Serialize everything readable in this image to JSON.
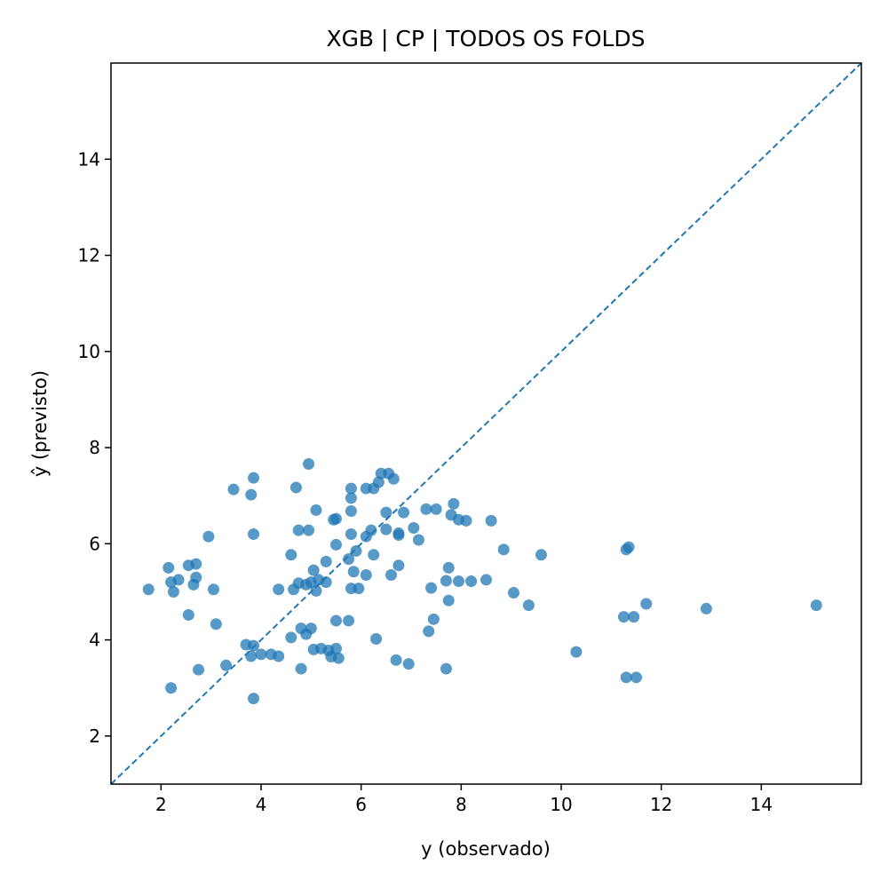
{
  "chart_data": {
    "type": "scatter",
    "title": "XGB | CP | TODOS OS FOLDS",
    "xlabel": "y (observado)",
    "ylabel": "ŷ (previsto)",
    "xlim": [
      1.0,
      16.0
    ],
    "ylim": [
      1.0,
      16.0
    ],
    "xticks": [
      2,
      4,
      6,
      8,
      10,
      12,
      14
    ],
    "yticks": [
      2,
      4,
      6,
      8,
      10,
      12,
      14
    ],
    "grid": false,
    "legend": "none",
    "reference_line": {
      "style": "dashed",
      "from": [
        1.0,
        1.0
      ],
      "to": [
        16.0,
        16.0
      ]
    },
    "colors": {
      "points": "#1f77b4",
      "line": "#1f77b4",
      "axes": "#000000"
    },
    "series": [
      {
        "points": [
          [
            1.75,
            5.05
          ],
          [
            2.15,
            5.5
          ],
          [
            2.2,
            5.2
          ],
          [
            2.2,
            3.0
          ],
          [
            2.25,
            5.0
          ],
          [
            2.35,
            5.25
          ],
          [
            2.55,
            5.55
          ],
          [
            2.55,
            4.52
          ],
          [
            2.65,
            5.15
          ],
          [
            2.7,
            5.58
          ],
          [
            2.7,
            5.3
          ],
          [
            2.75,
            3.38
          ],
          [
            2.95,
            6.15
          ],
          [
            3.05,
            5.05
          ],
          [
            3.1,
            4.33
          ],
          [
            3.3,
            3.47
          ],
          [
            3.45,
            7.13
          ],
          [
            3.7,
            3.9
          ],
          [
            3.8,
            7.02
          ],
          [
            3.8,
            3.66
          ],
          [
            3.85,
            7.37
          ],
          [
            3.85,
            6.2
          ],
          [
            3.85,
            2.78
          ],
          [
            3.85,
            3.88
          ],
          [
            4.0,
            3.7
          ],
          [
            4.2,
            3.7
          ],
          [
            4.35,
            5.05
          ],
          [
            4.35,
            3.66
          ],
          [
            4.6,
            5.77
          ],
          [
            4.6,
            4.05
          ],
          [
            4.65,
            5.05
          ],
          [
            4.7,
            7.17
          ],
          [
            4.75,
            6.28
          ],
          [
            4.75,
            5.18
          ],
          [
            4.8,
            4.24
          ],
          [
            4.8,
            3.4
          ],
          [
            4.9,
            5.15
          ],
          [
            4.9,
            4.12
          ],
          [
            4.95,
            7.66
          ],
          [
            4.95,
            6.28
          ],
          [
            5.0,
            5.2
          ],
          [
            5.0,
            4.24
          ],
          [
            5.05,
            5.45
          ],
          [
            5.05,
            3.8
          ],
          [
            5.1,
            6.7
          ],
          [
            5.1,
            5.02
          ],
          [
            5.15,
            5.25
          ],
          [
            5.2,
            3.82
          ],
          [
            5.3,
            5.63
          ],
          [
            5.3,
            5.2
          ],
          [
            5.35,
            3.78
          ],
          [
            5.4,
            3.65
          ],
          [
            5.45,
            6.5
          ],
          [
            5.5,
            6.52
          ],
          [
            5.5,
            5.98
          ],
          [
            5.5,
            4.4
          ],
          [
            5.5,
            3.82
          ],
          [
            5.55,
            3.62
          ],
          [
            5.75,
            5.68
          ],
          [
            5.75,
            4.4
          ],
          [
            5.8,
            7.15
          ],
          [
            5.8,
            6.95
          ],
          [
            5.8,
            6.68
          ],
          [
            5.8,
            6.2
          ],
          [
            5.8,
            5.07
          ],
          [
            5.85,
            5.42
          ],
          [
            5.9,
            5.85
          ],
          [
            5.95,
            5.07
          ],
          [
            6.1,
            7.15
          ],
          [
            6.1,
            6.15
          ],
          [
            6.1,
            5.35
          ],
          [
            6.2,
            6.28
          ],
          [
            6.25,
            7.15
          ],
          [
            6.25,
            5.77
          ],
          [
            6.3,
            4.02
          ],
          [
            6.35,
            7.28
          ],
          [
            6.4,
            7.46
          ],
          [
            6.5,
            6.65
          ],
          [
            6.5,
            6.3
          ],
          [
            6.55,
            7.46
          ],
          [
            6.6,
            5.35
          ],
          [
            6.65,
            7.35
          ],
          [
            6.7,
            3.58
          ],
          [
            6.75,
            6.22
          ],
          [
            6.75,
            6.18
          ],
          [
            6.75,
            5.55
          ],
          [
            6.85,
            6.65
          ],
          [
            6.95,
            3.5
          ],
          [
            7.05,
            6.33
          ],
          [
            7.15,
            6.08
          ],
          [
            7.3,
            6.72
          ],
          [
            7.35,
            4.18
          ],
          [
            7.4,
            5.08
          ],
          [
            7.45,
            4.43
          ],
          [
            7.5,
            6.72
          ],
          [
            7.7,
            5.23
          ],
          [
            7.7,
            3.4
          ],
          [
            7.75,
            5.5
          ],
          [
            7.75,
            4.82
          ],
          [
            7.8,
            6.6
          ],
          [
            7.85,
            6.83
          ],
          [
            7.95,
            6.5
          ],
          [
            7.95,
            5.22
          ],
          [
            8.1,
            6.48
          ],
          [
            8.2,
            5.22
          ],
          [
            8.5,
            5.25
          ],
          [
            8.6,
            6.48
          ],
          [
            8.85,
            5.88
          ],
          [
            9.05,
            4.98
          ],
          [
            9.35,
            4.72
          ],
          [
            9.6,
            5.77
          ],
          [
            10.3,
            3.75
          ],
          [
            11.25,
            4.48
          ],
          [
            11.3,
            5.88
          ],
          [
            11.3,
            3.22
          ],
          [
            11.35,
            5.93
          ],
          [
            11.45,
            4.48
          ],
          [
            11.5,
            3.22
          ],
          [
            11.7,
            4.75
          ],
          [
            12.9,
            4.65
          ],
          [
            15.1,
            4.72
          ]
        ]
      }
    ]
  }
}
